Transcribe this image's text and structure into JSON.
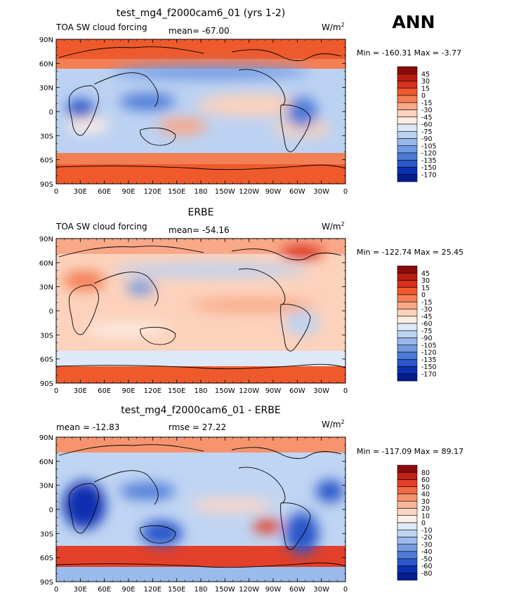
{
  "season": "ANN",
  "chart_data": [
    {
      "type": "heatmap",
      "title": "test_mg4_f2000cam6_01 (yrs 1-2)",
      "left_label": "TOA SW cloud forcing",
      "center_label": "mean= -67.00",
      "right_label": "W/m",
      "right_label_sup": "2",
      "stats": "Min = -160.31 Max =  -3.77",
      "xticks": [
        "0",
        "30E",
        "60E",
        "90E",
        "120E",
        "150E",
        "180",
        "150W",
        "120W",
        "90W",
        "60W",
        "30W",
        "0"
      ],
      "yticks": [
        "90N",
        "60N",
        "30N",
        "0",
        "30S",
        "60S",
        "90S"
      ],
      "colorbar": [
        "45",
        "30",
        "15",
        "0",
        "-15",
        "-30",
        "-45",
        "-60",
        "-75",
        "-90",
        "-105",
        "-120",
        "-135",
        "-150",
        "-170"
      ],
      "colorbar_colors": [
        "#8a0a0a",
        "#b81d14",
        "#d7301f",
        "#ee5a2c",
        "#f47f55",
        "#f9a888",
        "#fcd2bc",
        "#fdece2",
        "#dde8f8",
        "#bcd2f2",
        "#98b8ec",
        "#7199e2",
        "#4d7ad8",
        "#2a56c8",
        "#0c2fb0",
        "#041c8e"
      ],
      "field_mean": -67.0
    },
    {
      "type": "heatmap",
      "title": "ERBE",
      "left_label": "TOA SW cloud forcing",
      "center_label": "mean= -54.16",
      "right_label": "W/m",
      "right_label_sup": "2",
      "stats": "Min = -122.74 Max =  25.45",
      "xticks": [
        "0",
        "30E",
        "60E",
        "90E",
        "120E",
        "150E",
        "180",
        "150W",
        "120W",
        "90W",
        "60W",
        "30W",
        "0"
      ],
      "yticks": [
        "90N",
        "60N",
        "30N",
        "0",
        "30S",
        "60S",
        "90S"
      ],
      "colorbar": [
        "45",
        "30",
        "15",
        "0",
        "-15",
        "-30",
        "-45",
        "-60",
        "-75",
        "-90",
        "-105",
        "-120",
        "-135",
        "-150",
        "-170"
      ],
      "colorbar_colors": [
        "#8a0a0a",
        "#b81d14",
        "#d7301f",
        "#ee5a2c",
        "#f47f55",
        "#f9a888",
        "#fcd2bc",
        "#fdece2",
        "#dde8f8",
        "#bcd2f2",
        "#98b8ec",
        "#7199e2",
        "#4d7ad8",
        "#2a56c8",
        "#0c2fb0",
        "#041c8e"
      ],
      "field_mean": -54.16
    },
    {
      "type": "heatmap",
      "title": "test_mg4_f2000cam6_01 - ERBE",
      "left_label": "mean = -12.83",
      "center_label": "rmse =  27.22",
      "right_label": "W/m",
      "right_label_sup": "2",
      "stats": "Min = -117.09 Max =  89.17",
      "xticks": [
        "0",
        "30E",
        "60E",
        "90E",
        "120E",
        "150E",
        "180",
        "150W",
        "120W",
        "90W",
        "60W",
        "30W",
        "0"
      ],
      "yticks": [
        "90N",
        "60N",
        "30N",
        "0",
        "30S",
        "60S",
        "90S"
      ],
      "colorbar": [
        "80",
        "60",
        "50",
        "40",
        "30",
        "20",
        "10",
        "0",
        "-10",
        "-20",
        "-30",
        "-40",
        "-50",
        "-60",
        "-80"
      ],
      "colorbar_colors": [
        "#8a0a0a",
        "#c0221a",
        "#e3402a",
        "#f26a45",
        "#f6946f",
        "#f9b69a",
        "#fcd6c4",
        "#fdf0e8",
        "#dfeaf8",
        "#c0d5f3",
        "#9cbbed",
        "#769ce3",
        "#4f7cd9",
        "#2b57c9",
        "#0c2fb0",
        "#041c8e"
      ],
      "field_mean": -12.83
    }
  ]
}
